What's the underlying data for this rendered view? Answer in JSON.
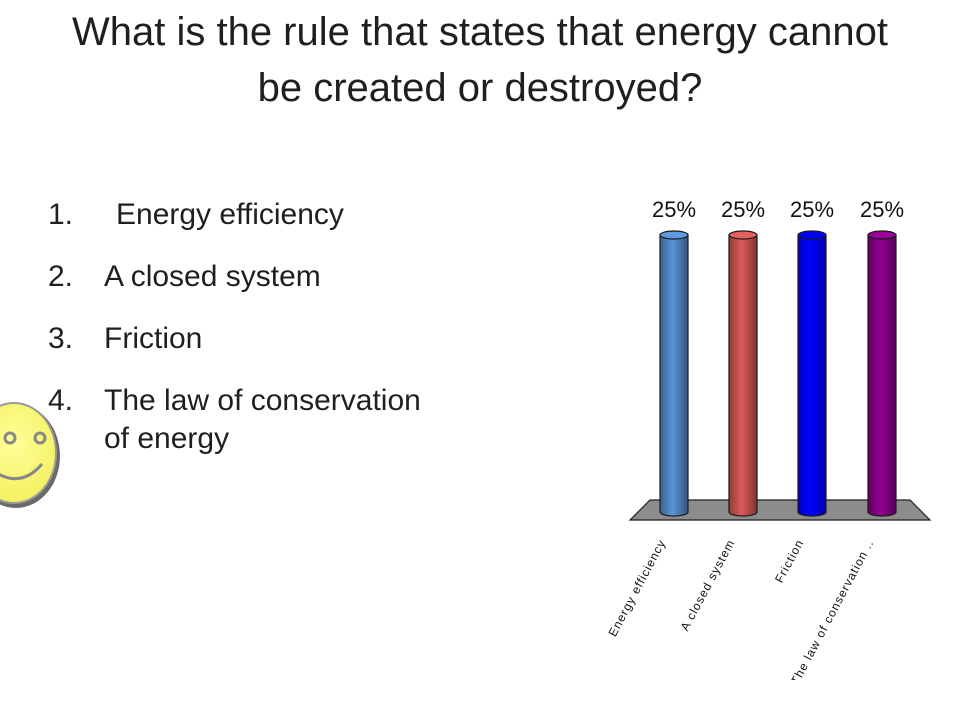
{
  "slide": {
    "title": "What is the rule that states that energy cannot be created or destroyed?",
    "answers": [
      {
        "number": "1.",
        "text": "Energy efficiency"
      },
      {
        "number": "2.",
        "text": "A closed system"
      },
      {
        "number": "3.",
        "text": "Friction"
      },
      {
        "number": "4.",
        "text": "The law of conservation of energy"
      }
    ],
    "icons": {
      "feedback": "smiley-face-icon"
    }
  },
  "chart_data": {
    "type": "bar",
    "title": "",
    "xlabel": "",
    "ylabel": "",
    "ylim": [
      0,
      25
    ],
    "grid": false,
    "categories": [
      "Energy efficiency",
      "A closed system",
      "Friction",
      "The law of conservation .."
    ],
    "values": [
      25,
      25,
      25,
      25
    ],
    "value_labels": [
      "25%",
      "25%",
      "25%",
      "25%"
    ],
    "colors": [
      "#4f81bd",
      "#c0504d",
      "#0000ff",
      "#800080"
    ],
    "style": "3d-cylinder"
  }
}
